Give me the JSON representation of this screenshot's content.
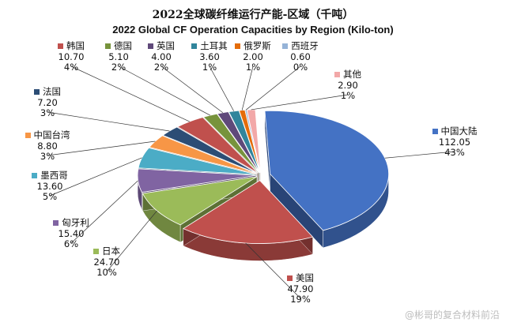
{
  "title_zh": "2022全球碳纤维运行产能-区域（千吨）",
  "title_en": "2022 Global CF Operation Capacities by Region (Kilo-ton)",
  "watermark": "@彬哥的复合材料前沿",
  "chart_data": {
    "type": "pie",
    "three_d": true,
    "exploded": true,
    "title": "2022 Global CF Operation Capacities by Region (Kilo-ton)",
    "slices": [
      {
        "name": "中国大陆",
        "value": 112.05,
        "value_label": "112.05",
        "pct_label": "43%",
        "color": "#4472C4"
      },
      {
        "name": "美国",
        "value": 47.9,
        "value_label": "47.90",
        "pct_label": "19%",
        "color": "#C0504D"
      },
      {
        "name": "日本",
        "value": 24.7,
        "value_label": "24.70",
        "pct_label": "10%",
        "color": "#9BBB59"
      },
      {
        "name": "匈牙利",
        "value": 15.4,
        "value_label": "15.40",
        "pct_label": "6%",
        "color": "#8064A2"
      },
      {
        "name": "墨西哥",
        "value": 13.6,
        "value_label": "13.60",
        "pct_label": "5%",
        "color": "#4BACC6"
      },
      {
        "name": "中国台湾",
        "value": 8.8,
        "value_label": "8.80",
        "pct_label": "3%",
        "color": "#F79646"
      },
      {
        "name": "法国",
        "value": 7.2,
        "value_label": "7.20",
        "pct_label": "3%",
        "color": "#2C4D75"
      },
      {
        "name": "韩国",
        "value": 10.7,
        "value_label": "10.70",
        "pct_label": "4%",
        "color": "#C0504D"
      },
      {
        "name": "德国",
        "value": 5.1,
        "value_label": "5.10",
        "pct_label": "2%",
        "color": "#77933C"
      },
      {
        "name": "英国",
        "value": 4.0,
        "value_label": "4.00",
        "pct_label": "2%",
        "color": "#5F497A"
      },
      {
        "name": "土耳其",
        "value": 3.6,
        "value_label": "3.60",
        "pct_label": "1%",
        "color": "#31859C"
      },
      {
        "name": "俄罗斯",
        "value": 2.0,
        "value_label": "2.00",
        "pct_label": "1%",
        "color": "#E46C0A"
      },
      {
        "name": "西班牙",
        "value": 0.6,
        "value_label": "0.60",
        "pct_label": "0%",
        "color": "#95B3D7"
      },
      {
        "name": "其他",
        "value": 2.9,
        "value_label": "2.90",
        "pct_label": "1%",
        "color": "#F2A8A8"
      }
    ]
  }
}
